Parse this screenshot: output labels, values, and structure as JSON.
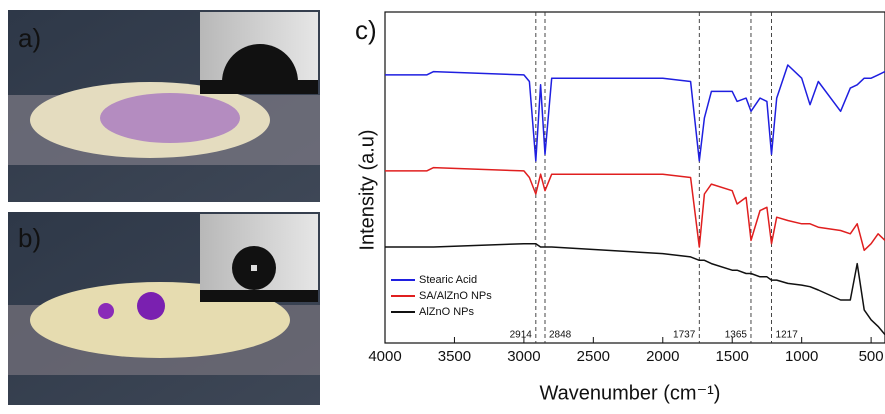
{
  "panel_labels": {
    "a": "a)",
    "b": "b)"
  },
  "chart_data": {
    "type": "line",
    "panel_label": "c)",
    "xlabel": "Wavenumber (cm⁻¹)",
    "ylabel": "Intensity (a.u)",
    "xlim": [
      4000,
      400
    ],
    "ylim": [
      0,
      100
    ],
    "xticks": [
      4000,
      3500,
      3000,
      2500,
      2000,
      1500,
      1000,
      500
    ],
    "markers": [
      2914,
      2848,
      1737,
      1365,
      1217
    ],
    "legend": "lower left",
    "x": [
      4000,
      3700,
      3650,
      3000,
      2960,
      2914,
      2880,
      2848,
      2800,
      2000,
      1800,
      1737,
      1700,
      1650,
      1500,
      1465,
      1400,
      1365,
      1300,
      1250,
      1217,
      1180,
      1100,
      1000,
      940,
      880,
      720,
      650,
      600,
      550,
      500,
      450,
      400
    ],
    "series": [
      {
        "name": "Stearic Acid",
        "color": "#1f1fe0",
        "values": [
          81,
          81,
          82,
          81,
          79,
          55,
          78,
          57,
          80,
          80,
          79,
          55,
          68,
          76,
          76,
          73,
          74,
          70,
          74,
          73,
          57,
          74,
          84,
          80,
          72,
          79,
          70,
          77,
          78,
          80,
          80,
          81,
          82
        ]
      },
      {
        "name": "SA/AlZnO NPs",
        "color": "#e01f1f",
        "values": [
          52,
          52,
          53,
          52,
          50,
          45,
          51,
          46,
          51,
          51,
          50,
          29,
          45,
          48,
          46,
          42,
          44,
          31,
          40,
          41,
          30,
          38,
          37,
          36,
          36,
          35,
          34,
          33,
          36,
          28,
          30,
          33,
          31
        ]
      },
      {
        "name": "AlZnO NPs",
        "color": "#111111",
        "values": [
          29,
          29,
          29,
          30,
          30,
          30,
          29,
          29,
          29,
          27,
          26,
          25,
          25,
          24,
          22,
          22,
          21,
          21,
          20,
          20,
          19,
          19,
          18,
          17.5,
          17,
          16,
          13,
          13,
          24,
          10,
          7,
          5,
          2.5
        ]
      }
    ]
  }
}
